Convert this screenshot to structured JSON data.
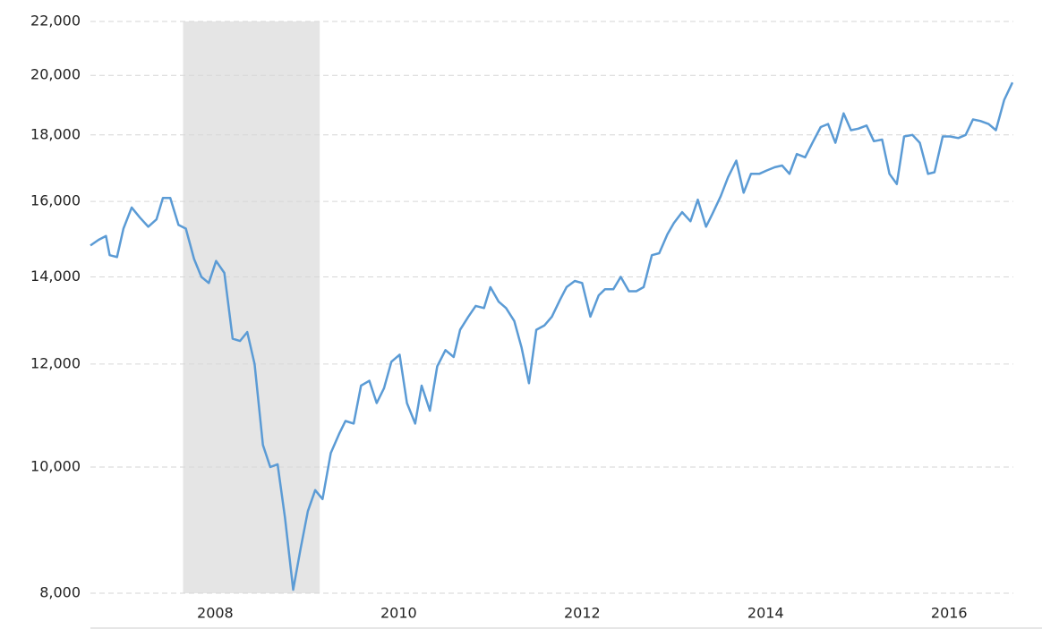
{
  "chart_data": {
    "type": "line",
    "log_y": true,
    "grid": true,
    "xlim": [
      2006.64,
      2016.7
    ],
    "xticks": [
      2008,
      2010,
      2012,
      2014,
      2016
    ],
    "ylim": [
      8000,
      22000
    ],
    "yticks": [
      {
        "value": 8000,
        "label": "8,000"
      },
      {
        "value": 10000,
        "label": "10,000"
      },
      {
        "value": 12000,
        "label": "12,000"
      },
      {
        "value": 14000,
        "label": "14,000"
      },
      {
        "value": 16000,
        "label": "16,000"
      },
      {
        "value": 18000,
        "label": "18,000"
      },
      {
        "value": 20000,
        "label": "20,000"
      },
      {
        "value": 22000,
        "label": "22,000"
      }
    ],
    "shaded_x": [
      2007.65,
      2009.14
    ],
    "shade_color": "#e5e5e5",
    "x": [
      2006.64,
      2006.73,
      2006.81,
      2006.85,
      2006.93,
      2007.0,
      2007.09,
      2007.18,
      2007.27,
      2007.36,
      2007.43,
      2007.51,
      2007.6,
      2007.68,
      2007.77,
      2007.85,
      2007.93,
      2008.01,
      2008.1,
      2008.19,
      2008.27,
      2008.35,
      2008.43,
      2008.52,
      2008.6,
      2008.68,
      2008.76,
      2008.85,
      2008.93,
      2009.01,
      2009.09,
      2009.17,
      2009.26,
      2009.35,
      2009.42,
      2009.51,
      2009.59,
      2009.68,
      2009.76,
      2009.84,
      2009.92,
      2010.01,
      2010.09,
      2010.18,
      2010.25,
      2010.34,
      2010.42,
      2010.51,
      2010.6,
      2010.67,
      2010.76,
      2010.84,
      2010.93,
      2011.0,
      2011.09,
      2011.17,
      2011.26,
      2011.34,
      2011.42,
      2011.5,
      2011.59,
      2011.67,
      2011.76,
      2011.83,
      2011.92,
      2012.0,
      2012.09,
      2012.18,
      2012.25,
      2012.34,
      2012.42,
      2012.51,
      2012.59,
      2012.67,
      2012.76,
      2012.84,
      2012.93,
      2013.0,
      2013.09,
      2013.18,
      2013.26,
      2013.35,
      2013.42,
      2013.51,
      2013.59,
      2013.68,
      2013.76,
      2013.84,
      2013.93,
      2014.01,
      2014.1,
      2014.18,
      2014.26,
      2014.34,
      2014.43,
      2014.51,
      2014.6,
      2014.68,
      2014.76,
      2014.85,
      2014.93,
      2015.01,
      2015.1,
      2015.18,
      2015.27,
      2015.35,
      2015.43,
      2015.51,
      2015.6,
      2015.68,
      2015.77,
      2015.84,
      2015.93,
      2016.01,
      2016.1,
      2016.18,
      2016.26,
      2016.34,
      2016.43,
      2016.51,
      2016.6,
      2016.69
    ],
    "series": [
      {
        "color": "#5b9bd5",
        "values": [
          14800,
          14950,
          15050,
          14550,
          14500,
          15250,
          15830,
          15550,
          15300,
          15500,
          16100,
          16100,
          15350,
          15250,
          14450,
          14000,
          13850,
          14400,
          14100,
          12550,
          12500,
          12700,
          12000,
          10400,
          10000,
          10050,
          9150,
          8050,
          8650,
          9250,
          9600,
          9450,
          10250,
          10600,
          10850,
          10800,
          11550,
          11650,
          11200,
          11500,
          12050,
          12200,
          11200,
          10800,
          11550,
          11050,
          11950,
          12300,
          12150,
          12750,
          13050,
          13300,
          13250,
          13750,
          13400,
          13250,
          12950,
          12350,
          11600,
          12750,
          12850,
          13050,
          13450,
          13750,
          13900,
          13850,
          13050,
          13550,
          13700,
          13700,
          14000,
          13650,
          13650,
          13750,
          14550,
          14600,
          15100,
          15400,
          15700,
          15450,
          16050,
          15300,
          15650,
          16150,
          16700,
          17200,
          16250,
          16800,
          16800,
          16900,
          17000,
          17050,
          16800,
          17400,
          17300,
          17750,
          18250,
          18350,
          17750,
          18700,
          18150,
          18200,
          18300,
          17800,
          17850,
          16800,
          16500,
          17950,
          18000,
          17750,
          16800,
          16850,
          17950,
          17950,
          17900,
          18000,
          18500,
          18450,
          18350,
          18150,
          19150,
          19750
        ]
      }
    ]
  }
}
